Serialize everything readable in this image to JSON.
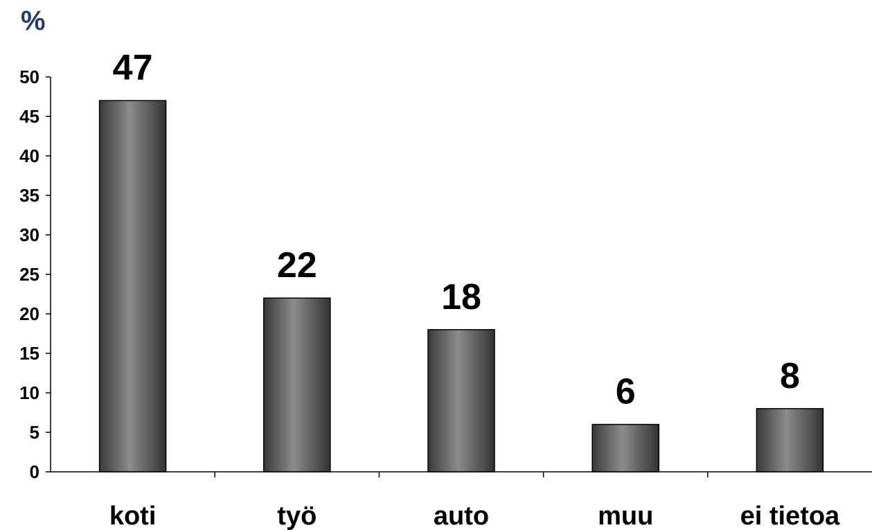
{
  "chart_data": {
    "type": "bar",
    "ylabel": "%",
    "categories": [
      "koti",
      "työ",
      "auto",
      "muu",
      "ei tietoa"
    ],
    "values": [
      47,
      22,
      18,
      6,
      8
    ],
    "data_labels": [
      "47",
      "22",
      "18",
      "6",
      "8"
    ],
    "ylim": [
      0,
      50
    ],
    "yticks": [
      0,
      5,
      10,
      15,
      20,
      25,
      30,
      35,
      40,
      45,
      50
    ],
    "grid": false,
    "legend": "none",
    "colors": {
      "bar_edge": "#404040",
      "bar_center": "#8c8c8c",
      "bar_dark": "#333333",
      "axis": "#000000",
      "unit_label": "#1f3c78"
    }
  }
}
